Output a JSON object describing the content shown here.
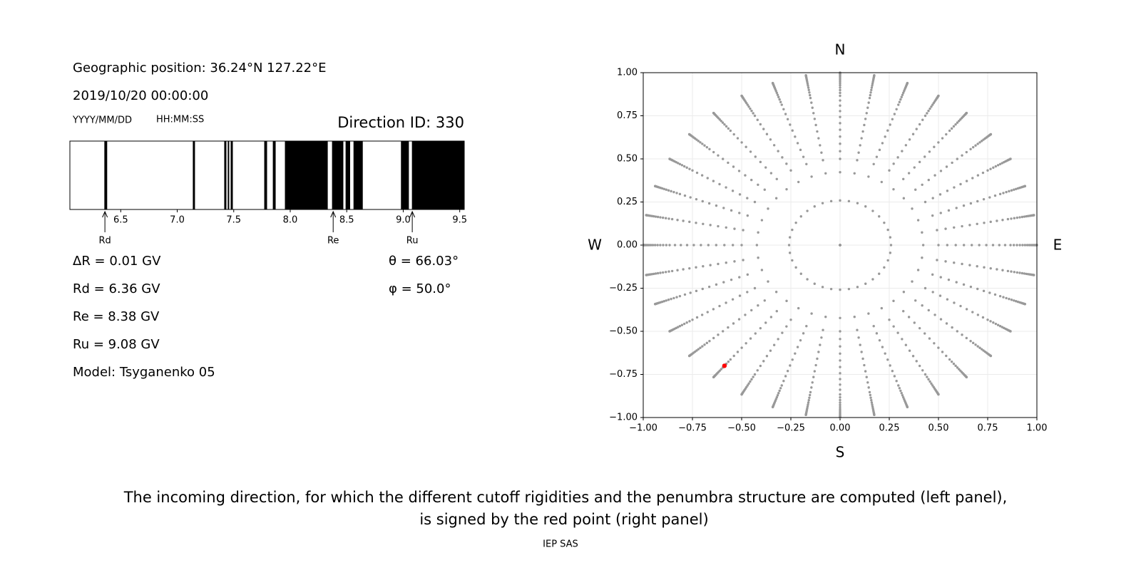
{
  "header": {
    "position": "Geographic position: 36.24°N 127.22°E",
    "datetime": "2019/10/20 00:00:00",
    "date_format": "YYYY/MM/DD",
    "time_format": "HH:MM:SS",
    "direction": "Direction ID: 330"
  },
  "chart_data": [
    {
      "type": "penumbra",
      "xlim": [
        6.05,
        9.54
      ],
      "xticks": [
        6.5,
        {
          "value": 7,
          "label": "7.0"
        },
        7.5,
        {
          "value": 8,
          "label": "8.0"
        },
        8.5,
        {
          "value": 9,
          "label": "9.0"
        },
        9.5
      ],
      "color": "#000000",
      "forbidden": [
        [
          6.355,
          6.38
        ],
        [
          7.138,
          7.157
        ],
        [
          7.416,
          7.435
        ],
        [
          7.447,
          7.46
        ],
        [
          7.473,
          7.492
        ],
        [
          7.77,
          7.795
        ],
        [
          7.846,
          7.871
        ],
        [
          7.953,
          8.332
        ],
        [
          8.37,
          8.47
        ],
        [
          8.49,
          8.53
        ],
        [
          8.56,
          8.642
        ],
        [
          8.98,
          9.05
        ],
        [
          9.077,
          9.54
        ]
      ],
      "markers": [
        {
          "name": "Rd",
          "value": 6.36
        },
        {
          "name": "Re",
          "value": 8.38
        },
        {
          "name": "Ru",
          "value": 9.08
        }
      ]
    },
    {
      "type": "polar_scatter",
      "xlim": [
        -1,
        1
      ],
      "ylim": [
        -1,
        1
      ],
      "xticks": [
        {
          "value": -1,
          "label": "−1.00"
        },
        {
          "value": -0.75,
          "label": "−0.75"
        },
        {
          "value": -0.5,
          "label": "−0.50"
        },
        {
          "value": -0.25,
          "label": "−0.25"
        },
        {
          "value": 0,
          "label": "0.00"
        },
        {
          "value": 0.25,
          "label": "0.25"
        },
        {
          "value": 0.5,
          "label": "0.50"
        },
        {
          "value": 0.75,
          "label": "0.75"
        },
        {
          "value": 1,
          "label": "1.00"
        }
      ],
      "yticks": [
        {
          "value": -1,
          "label": "−1.00"
        },
        {
          "value": -0.75,
          "label": "−0.75"
        },
        {
          "value": -0.5,
          "label": "−0.50"
        },
        {
          "value": -0.25,
          "label": "−0.25"
        },
        {
          "value": 0,
          "label": "0.00"
        },
        {
          "value": 0.25,
          "label": "0.25"
        },
        {
          "value": 0.5,
          "label": "0.50"
        },
        {
          "value": 0.75,
          "label": "0.75"
        },
        {
          "value": 1,
          "label": "1.00"
        }
      ],
      "grid": true,
      "color": "#999999",
      "zenith": [
        0,
        15,
        25,
        30,
        33,
        36,
        39,
        42,
        45,
        48,
        51,
        54,
        57,
        60,
        62,
        64,
        66,
        68,
        70,
        72,
        74,
        76,
        78,
        80,
        82,
        84,
        86,
        88,
        90
      ],
      "azimuth": [
        0,
        10,
        20,
        30,
        40,
        50,
        60,
        70,
        80,
        90,
        100,
        110,
        120,
        130,
        140,
        150,
        160,
        170,
        180,
        190,
        200,
        210,
        220,
        230,
        240,
        250,
        260,
        270,
        280,
        290,
        300,
        310,
        320,
        330,
        340,
        350
      ],
      "highlight": {
        "zenith": 66.03,
        "azimuth": 50.0,
        "color": "#ff0000",
        "zenith_label": "θ = 66.03°",
        "azimuth_label": "φ = 50.0°"
      },
      "compass": [
        "N",
        "E",
        "S",
        "W"
      ]
    }
  ],
  "info": [
    "ΔR = 0.01 GV",
    "Rd = 6.36 GV",
    "Re = 8.38 GV",
    "Ru = 9.08 GV",
    "Model: Tsyganenko 05"
  ],
  "caption": [
    "The incoming direction, for which the different cutoff rigidities and the penumbra structure are computed (left panel),",
    "is signed by the red point (right panel)"
  ],
  "footer": "IEP SAS"
}
